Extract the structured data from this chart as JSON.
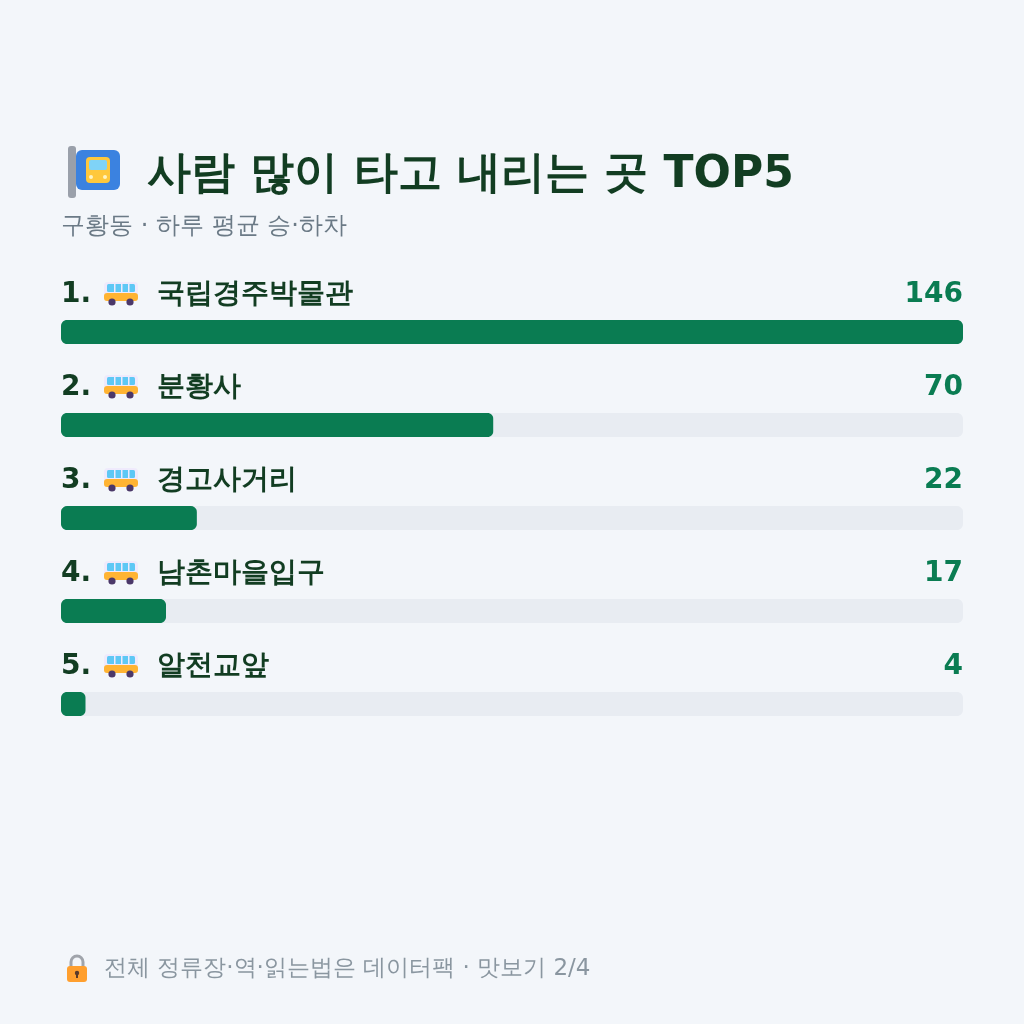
{
  "chart_data": {
    "type": "bar",
    "orientation": "horizontal",
    "title": "사람 많이 타고 내리는 곳 TOP5",
    "subtitle": "구황동 · 하루 평균 승·하차",
    "categories": [
      "1. 국립경주박물관",
      "2. 분황사",
      "3. 경고사거리",
      "4. 남촌마을입구",
      "5. 알천교앞"
    ],
    "values": [
      146,
      70,
      22,
      17,
      4
    ],
    "color": "#0a7c52",
    "xlim": [
      0,
      146
    ],
    "data_labels": true,
    "annotations": [
      "전체 정류장·역·읽는법은 데이터팩 · 맛보기 2/4"
    ]
  }
}
